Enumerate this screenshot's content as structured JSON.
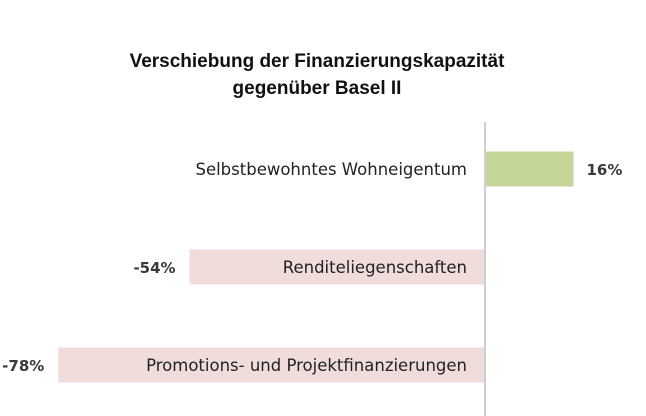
{
  "chart_data": {
    "type": "bar",
    "orientation": "horizontal",
    "title_lines": [
      "Verschiebung der Finanzierungskapazität",
      "gegenüber Basel II"
    ],
    "categories": [
      "Selbstbewohntes Wohneigentum",
      "Renditeliegenschaften",
      "Promotions- und Projektfinanzierungen"
    ],
    "values": [
      16,
      -54,
      -78
    ],
    "value_labels": [
      "16%",
      "-54%",
      "-78%"
    ],
    "xlabel": "",
    "ylabel": "",
    "grid": false,
    "legend": "none",
    "colors": {
      "positive": "#c5d69a",
      "negative": "#f1dcdc",
      "axis": "#cfcfcf"
    }
  }
}
